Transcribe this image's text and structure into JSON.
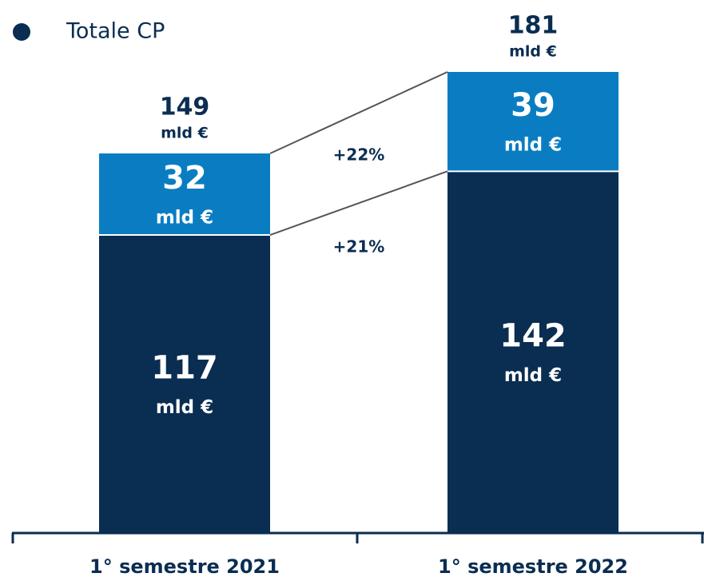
{
  "chart_data": {
    "type": "stacked_bar",
    "legend": {
      "name": "Totale CP",
      "color": "#0a2d52"
    },
    "categories": [
      "1° semestre 2021",
      "1° semestre 2022"
    ],
    "unit": "mld €",
    "series": [
      {
        "name": "Totale CP",
        "color": "#0a2d52",
        "values": [
          117,
          142
        ]
      },
      {
        "color": "#0a7dc2",
        "values": [
          32,
          39
        ]
      }
    ],
    "totals": [
      149,
      181
    ],
    "annotations": [
      "+22%",
      "+21%"
    ]
  }
}
